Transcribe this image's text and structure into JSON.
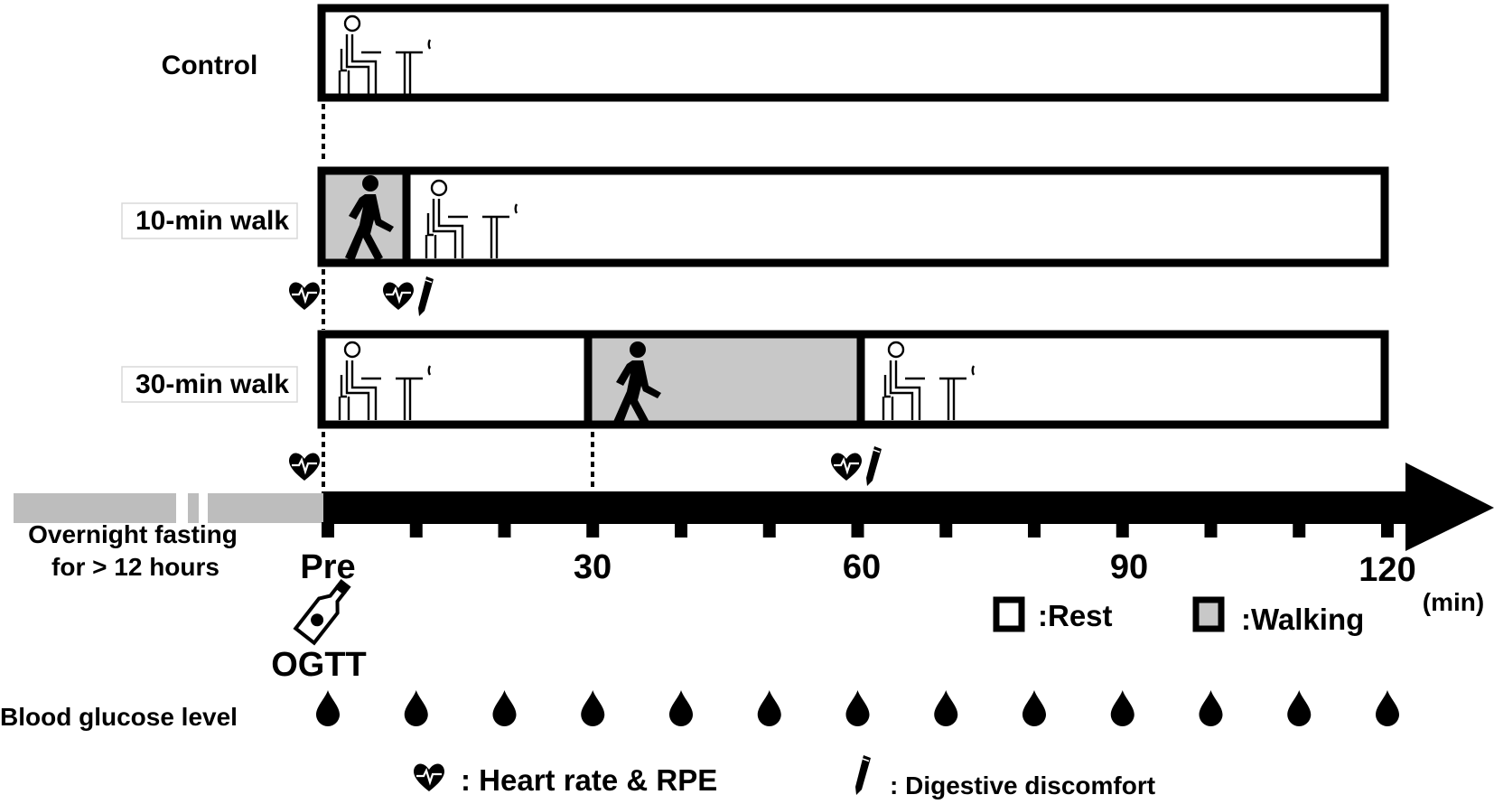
{
  "rows": [
    {
      "label": "Control",
      "boxed_label": false
    },
    {
      "label": "10-min walk",
      "boxed_label": true
    },
    {
      "label": "30-min walk",
      "boxed_label": true
    }
  ],
  "fasting": {
    "line1": "Overnight fasting",
    "line2": "for  > 12 hours"
  },
  "timeline": {
    "ticks": [
      "Pre",
      "30",
      "60",
      "90",
      "120"
    ],
    "unit": "(min)",
    "minor_ticks_every_min": 10,
    "max_min": 120
  },
  "ogtt_label": "OGTT",
  "legend": {
    "rest": ":Rest",
    "walking": ":Walking",
    "heart": ": Heart rate & RPE",
    "pencil": ": Digestive discomfort"
  },
  "blood_glucose": {
    "label": "Blood glucose level",
    "count": 13
  },
  "colors": {
    "walking_fill": "#c8c8c8",
    "fasting_bar": "#bdbdbd",
    "ink": "#000000"
  },
  "icons": {
    "rest": "seated-person-icon",
    "walk": "walking-person-icon",
    "heart": "heart-rate-icon",
    "pencil": "pencil-icon",
    "bottle": "glucose-bottle-icon",
    "drop": "blood-drop-icon"
  }
}
